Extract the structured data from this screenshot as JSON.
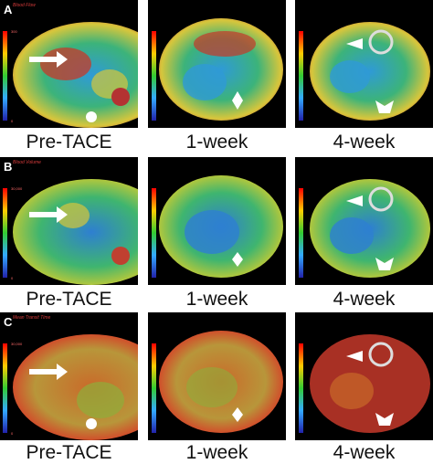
{
  "rows": [
    {
      "letter": "A",
      "map_label": "Blood Flow",
      "scale_max": "300",
      "scale_min": "0",
      "columns": [
        "Pre-TACE",
        "1-week",
        "4-week"
      ]
    },
    {
      "letter": "B",
      "map_label": "Blood Volume",
      "scale_max": "30,000",
      "scale_min": "0",
      "columns": [
        "Pre-TACE",
        "1-week",
        "4-week"
      ]
    },
    {
      "letter": "C",
      "map_label": "Mean Transit Time",
      "scale_max": "30,000",
      "scale_min": "0",
      "columns": [
        "Pre-TACE",
        "1-week",
        "4-week"
      ]
    }
  ],
  "colors": {
    "background": "#000000",
    "caption_text": "#111111",
    "arrow": "#ffffff"
  }
}
